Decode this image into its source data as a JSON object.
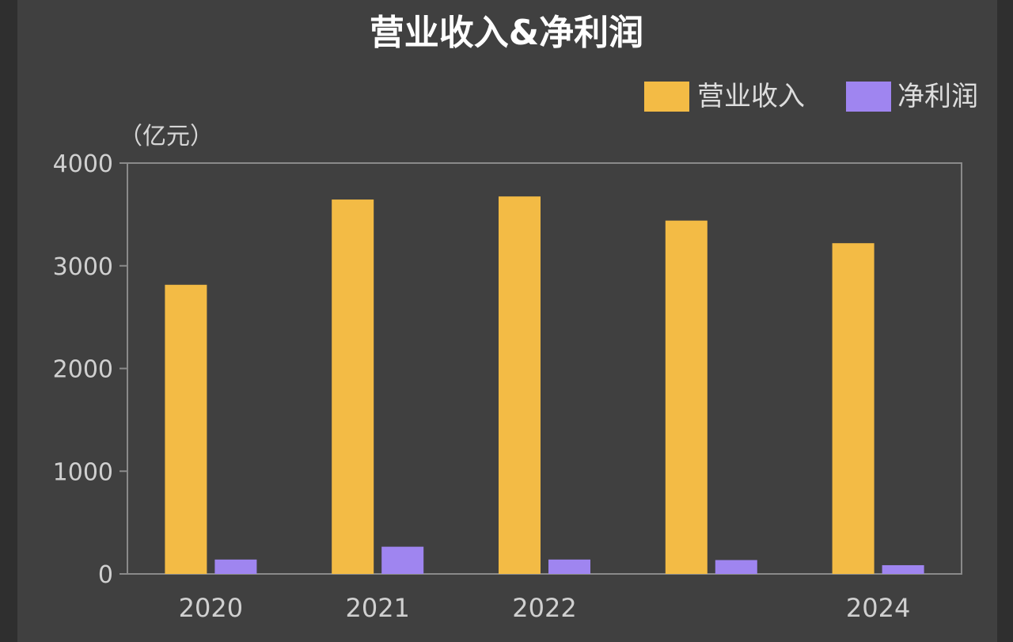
{
  "chart_data": {
    "type": "bar",
    "title": "营业收入&净利润",
    "unit_label": "（亿元）",
    "categories": [
      "2020",
      "2021",
      "2022",
      "",
      "2024"
    ],
    "series": [
      {
        "name": "营业收入",
        "color": "#f3bb45",
        "values": [
          2815,
          3645,
          3675,
          3440,
          3220
        ]
      },
      {
        "name": "净利润",
        "color": "#9f85f0",
        "values": [
          140,
          265,
          140,
          135,
          85
        ]
      }
    ],
    "ylim": [
      0,
      4000
    ],
    "yticks": [
      0,
      1000,
      2000,
      3000,
      4000
    ],
    "ytick_labels": [
      "0",
      "1000",
      "2000",
      "3000",
      "4000"
    ],
    "grid": false,
    "legend_position": "top-right"
  }
}
